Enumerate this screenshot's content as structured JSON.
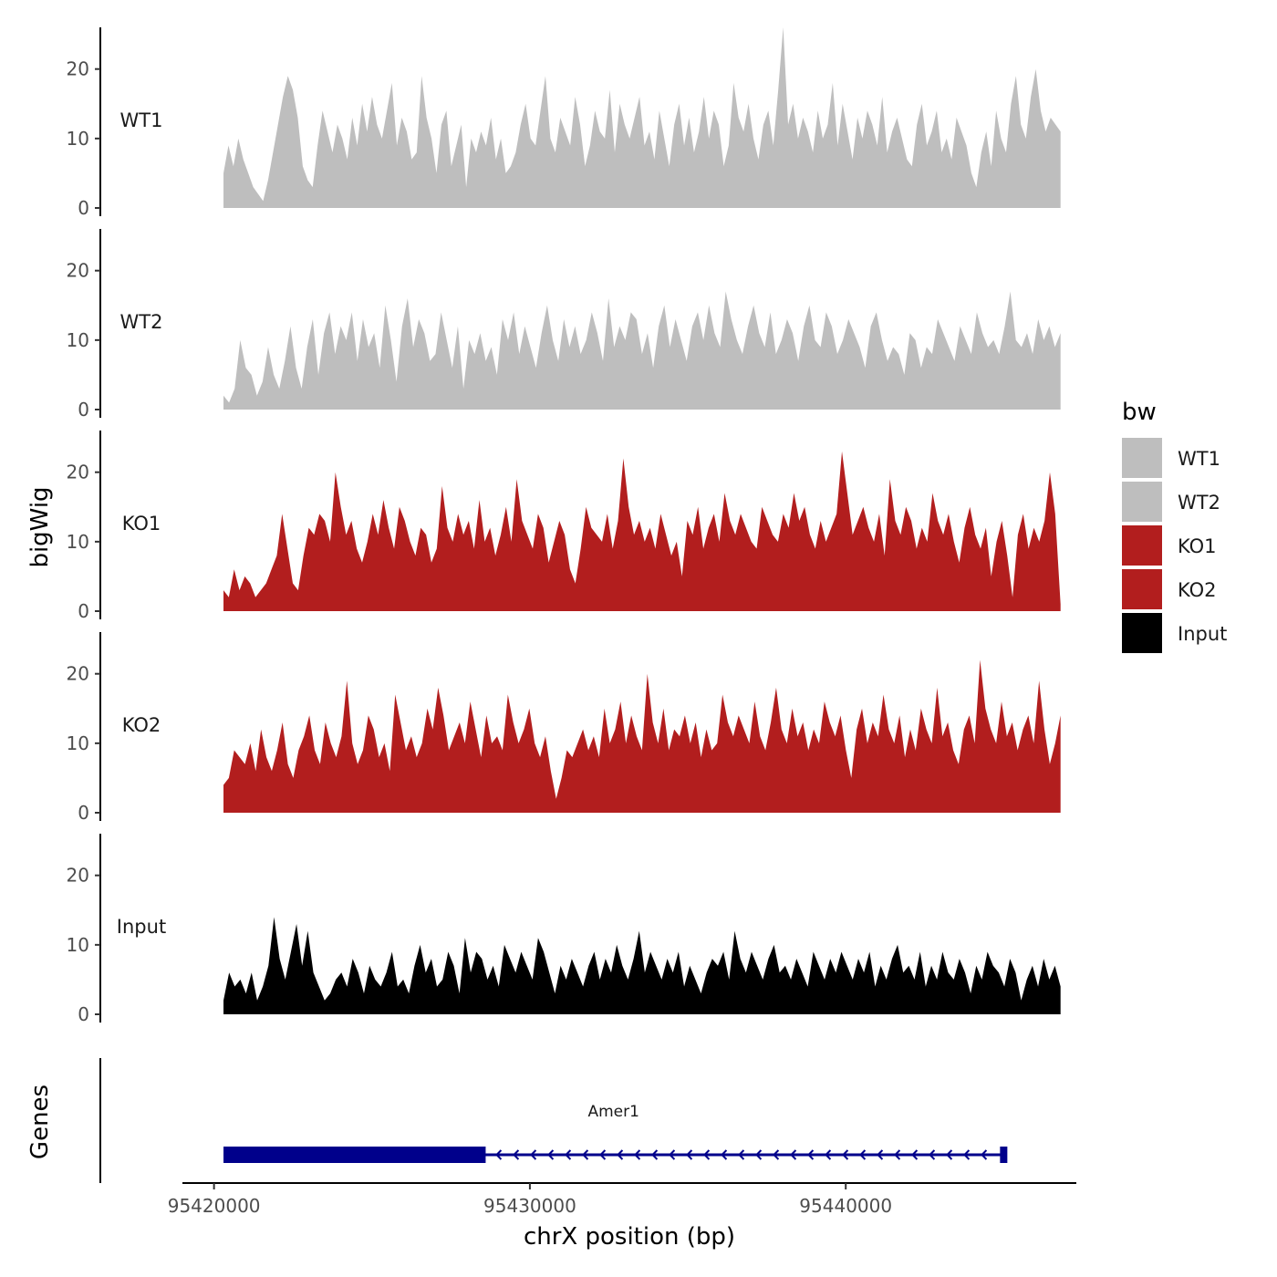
{
  "chart_data": {
    "type": "area",
    "title": "",
    "xlabel": "chrX position (bp)",
    "ylabel": "bigWig",
    "gene_panel_label": "Genes",
    "xlim": [
      95419000,
      95447300
    ],
    "ylim": [
      0,
      26
    ],
    "x_ticks": [
      95420000,
      95430000,
      95440000
    ],
    "x_tick_labels": [
      "95420000",
      "95430000",
      "95440000"
    ],
    "y_ticks": [
      0,
      10,
      20
    ],
    "y_tick_labels": [
      "0",
      "10",
      "20"
    ],
    "region": [
      95420300,
      95446800
    ],
    "legend": {
      "title": "bw",
      "position": "right",
      "entries": [
        {
          "label": "WT1",
          "color": "#bebebe"
        },
        {
          "label": "WT2",
          "color": "#bebebe"
        },
        {
          "label": "KO1",
          "color": "#b21e1e"
        },
        {
          "label": "KO2",
          "color": "#b21e1e"
        },
        {
          "label": "Input",
          "color": "#000000"
        }
      ]
    },
    "series": [
      {
        "name": "WT1",
        "color": "#bebebe",
        "values": [
          5,
          9,
          6,
          10,
          7,
          5,
          3,
          2,
          1,
          4,
          8,
          12,
          16,
          19,
          17,
          13,
          6,
          4,
          3,
          9,
          14,
          11,
          8,
          12,
          10,
          7,
          13,
          9,
          15,
          11,
          16,
          12,
          10,
          14,
          18,
          9,
          13,
          11,
          7,
          8,
          19,
          13,
          10,
          5,
          12,
          14,
          6,
          9,
          12,
          3,
          10,
          8,
          11,
          9,
          13,
          7,
          10,
          5,
          6,
          8,
          12,
          15,
          10,
          9,
          14,
          19,
          10,
          8,
          13,
          11,
          9,
          16,
          12,
          6,
          9,
          14,
          11,
          10,
          17,
          8,
          15,
          12,
          10,
          13,
          16,
          9,
          11,
          7,
          14,
          10,
          6,
          12,
          15,
          9,
          13,
          8,
          11,
          16,
          10,
          14,
          12,
          6,
          9,
          18,
          13,
          11,
          15,
          10,
          7,
          12,
          14,
          9,
          17,
          26,
          12,
          15,
          10,
          13,
          11,
          8,
          14,
          10,
          12,
          18,
          9,
          15,
          11,
          7,
          13,
          10,
          14,
          12,
          9,
          16,
          8,
          11,
          13,
          10,
          7,
          6,
          12,
          15,
          9,
          11,
          14,
          8,
          10,
          7,
          13,
          11,
          9,
          5,
          3,
          8,
          11,
          6,
          14,
          10,
          8,
          15,
          19,
          12,
          10,
          16,
          20,
          14,
          11,
          13,
          12,
          11
        ]
      },
      {
        "name": "WT2",
        "color": "#bebebe",
        "values": [
          2,
          1,
          3,
          10,
          6,
          5,
          2,
          4,
          9,
          5,
          3,
          7,
          12,
          6,
          3,
          9,
          13,
          5,
          11,
          14,
          8,
          12,
          10,
          14,
          7,
          13,
          9,
          11,
          6,
          15,
          10,
          4,
          12,
          16,
          9,
          13,
          11,
          7,
          8,
          14,
          10,
          6,
          12,
          3,
          10,
          8,
          11,
          7,
          9,
          5,
          13,
          10,
          14,
          8,
          12,
          9,
          6,
          11,
          15,
          10,
          7,
          13,
          9,
          12,
          8,
          10,
          14,
          11,
          7,
          16,
          9,
          12,
          10,
          14,
          13,
          8,
          11,
          6,
          12,
          15,
          9,
          13,
          10,
          7,
          12,
          14,
          10,
          15,
          11,
          9,
          17,
          13,
          10,
          8,
          12,
          15,
          11,
          9,
          14,
          8,
          10,
          13,
          11,
          7,
          12,
          15,
          10,
          9,
          14,
          12,
          8,
          10,
          13,
          11,
          9,
          6,
          12,
          14,
          10,
          7,
          9,
          8,
          5,
          11,
          10,
          6,
          9,
          8,
          13,
          11,
          9,
          7,
          12,
          10,
          8,
          14,
          11,
          9,
          10,
          8,
          12,
          17,
          10,
          9,
          11,
          8,
          13,
          10,
          12,
          9,
          11
        ]
      },
      {
        "name": "KO1",
        "color": "#b21e1e",
        "values": [
          3,
          2,
          6,
          3,
          5,
          4,
          2,
          3,
          4,
          6,
          8,
          14,
          9,
          4,
          3,
          8,
          12,
          11,
          14,
          13,
          10,
          20,
          15,
          11,
          13,
          9,
          7,
          10,
          14,
          11,
          16,
          12,
          9,
          15,
          13,
          10,
          8,
          12,
          11,
          7,
          9,
          18,
          12,
          10,
          14,
          11,
          13,
          9,
          16,
          10,
          12,
          8,
          11,
          15,
          10,
          19,
          13,
          11,
          9,
          14,
          12,
          7,
          10,
          13,
          11,
          6,
          4,
          9,
          15,
          12,
          11,
          10,
          14,
          9,
          13,
          22,
          15,
          11,
          13,
          10,
          12,
          9,
          14,
          11,
          8,
          10,
          5,
          13,
          11,
          15,
          9,
          12,
          14,
          10,
          17,
          13,
          11,
          14,
          12,
          10,
          9,
          15,
          13,
          11,
          10,
          14,
          12,
          17,
          13,
          15,
          11,
          9,
          13,
          10,
          12,
          14,
          23,
          17,
          11,
          13,
          15,
          12,
          10,
          14,
          8,
          19,
          13,
          11,
          15,
          13,
          9,
          12,
          10,
          17,
          13,
          11,
          14,
          10,
          7,
          12,
          15,
          11,
          9,
          12,
          5,
          10,
          13,
          8,
          2,
          11,
          14,
          9,
          12,
          10,
          13,
          20,
          14,
          1
        ]
      },
      {
        "name": "KO2",
        "color": "#b21e1e",
        "values": [
          4,
          5,
          9,
          8,
          7,
          10,
          6,
          12,
          8,
          6,
          9,
          13,
          7,
          5,
          9,
          11,
          14,
          9,
          7,
          13,
          10,
          8,
          11,
          19,
          10,
          7,
          9,
          14,
          12,
          8,
          10,
          6,
          17,
          13,
          9,
          11,
          8,
          10,
          15,
          12,
          18,
          14,
          9,
          11,
          13,
          10,
          16,
          12,
          8,
          14,
          10,
          11,
          9,
          17,
          13,
          10,
          12,
          15,
          10,
          8,
          11,
          6,
          2,
          5,
          9,
          8,
          10,
          12,
          9,
          11,
          8,
          15,
          10,
          12,
          16,
          10,
          14,
          11,
          9,
          20,
          13,
          10,
          15,
          9,
          12,
          11,
          14,
          10,
          13,
          8,
          12,
          9,
          10,
          17,
          13,
          11,
          14,
          12,
          10,
          16,
          11,
          9,
          13,
          18,
          12,
          10,
          15,
          11,
          13,
          9,
          12,
          10,
          16,
          13,
          11,
          14,
          9,
          5,
          12,
          15,
          10,
          13,
          11,
          17,
          12,
          10,
          14,
          8,
          12,
          9,
          15,
          12,
          10,
          18,
          11,
          13,
          9,
          7,
          12,
          14,
          10,
          22,
          15,
          12,
          10,
          16,
          11,
          13,
          9,
          12,
          14,
          10,
          19,
          12,
          7,
          10,
          14
        ]
      },
      {
        "name": "Input",
        "color": "#000000",
        "values": [
          2,
          6,
          4,
          5,
          3,
          6,
          2,
          4,
          7,
          14,
          8,
          5,
          9,
          13,
          7,
          12,
          6,
          4,
          2,
          3,
          5,
          6,
          4,
          8,
          6,
          3,
          7,
          5,
          4,
          6,
          9,
          4,
          5,
          3,
          7,
          10,
          6,
          8,
          4,
          5,
          9,
          7,
          3,
          11,
          6,
          9,
          8,
          5,
          7,
          4,
          10,
          8,
          6,
          9,
          7,
          5,
          11,
          9,
          6,
          3,
          7,
          5,
          8,
          6,
          4,
          7,
          9,
          5,
          8,
          6,
          10,
          7,
          5,
          8,
          12,
          6,
          9,
          7,
          5,
          8,
          6,
          9,
          4,
          7,
          5,
          3,
          6,
          8,
          7,
          9,
          5,
          12,
          8,
          6,
          9,
          7,
          5,
          8,
          10,
          6,
          7,
          5,
          8,
          6,
          4,
          9,
          7,
          5,
          8,
          6,
          9,
          7,
          5,
          8,
          6,
          9,
          4,
          7,
          5,
          8,
          10,
          6,
          7,
          5,
          9,
          4,
          7,
          5,
          9,
          6,
          5,
          8,
          6,
          3,
          7,
          5,
          9,
          7,
          6,
          4,
          8,
          6,
          2,
          5,
          7,
          4,
          8,
          5,
          7,
          4
        ]
      }
    ],
    "genes": [
      {
        "name": "Amer1",
        "strand": "-",
        "start": 95420300,
        "end": 95445000,
        "thick_start": 95420300,
        "thick_end": 95428600
      }
    ]
  }
}
